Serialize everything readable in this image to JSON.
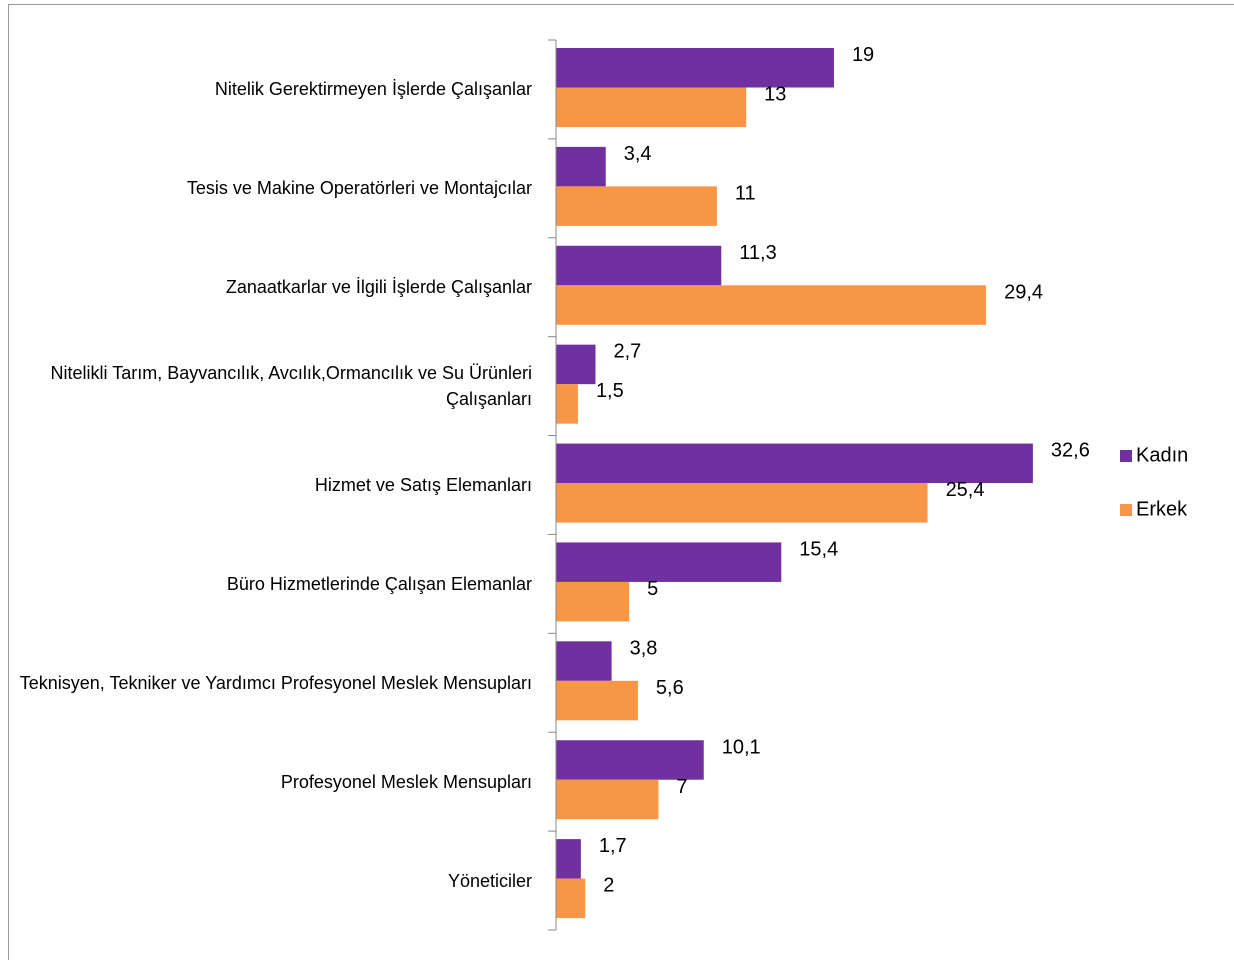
{
  "chart_data": {
    "type": "bar",
    "orientation": "horizontal",
    "categories": [
      "Nitelik Gerektirmeyen İşlerde Çalışanlar",
      "Tesis ve Makine Operatörleri ve Montajcılar",
      "Zanaatkarlar ve İlgili İşlerde Çalışanlar",
      "Nitelikli Tarım, Bayvancılık, Avcılık,Ormancılık ve Su Ürünleri Çalışanları",
      "Hizmet ve Satış Elemanları",
      "Büro Hizmetlerinde Çalışan Elemanlar",
      "Teknisyen, Tekniker ve Yardımcı Profesyonel Meslek Mensupları",
      "Profesyonel Meslek Mensupları",
      "Yöneticiler"
    ],
    "series": [
      {
        "name": "Kadın",
        "color": "#7030a0",
        "values": [
          19,
          3.4,
          11.3,
          2.7,
          32.6,
          15.4,
          3.8,
          10.1,
          1.7
        ],
        "value_labels": [
          "19",
          "3,4",
          "11,3",
          "2,7",
          "32,6",
          "15,4",
          "3,8",
          "10,1",
          "1,7"
        ]
      },
      {
        "name": "Erkek",
        "color": "#f79646",
        "values": [
          13,
          11,
          29.4,
          1.5,
          25.4,
          5,
          5.6,
          7,
          2
        ],
        "value_labels": [
          "13",
          "11",
          "29,4",
          "1,5",
          "25,4",
          "5",
          "5,6",
          "7",
          "2"
        ]
      }
    ],
    "xlim": [
      0,
      35
    ],
    "legend": "right"
  }
}
